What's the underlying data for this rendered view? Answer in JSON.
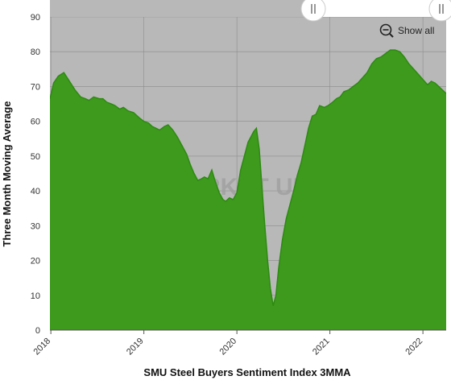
{
  "chart_data": {
    "type": "area",
    "title": "",
    "xlabel": "SMU Steel Buyers Sentiment Index 3MMA",
    "ylabel": "Three Month Moving Average",
    "ylim": [
      0,
      90
    ],
    "yticks": [
      0,
      10,
      20,
      30,
      40,
      50,
      60,
      70,
      80,
      90
    ],
    "xticks": [
      {
        "label": "2018",
        "x": 2018.0
      },
      {
        "label": "2019",
        "x": 2019.0
      },
      {
        "label": "2020",
        "x": 2020.0
      },
      {
        "label": "2021",
        "x": 2021.0
      },
      {
        "label": "2022",
        "x": 2022.0
      }
    ],
    "xlim": [
      2017.99,
      2022.25
    ],
    "grid": true,
    "fill_color": "#3d9a1c",
    "line_color": "#2e8a12",
    "plot_background": "#b8b8b8",
    "watermark": "STEEL MARKET UPDATE",
    "series": [
      {
        "x": [
          2017.99,
          2018.03,
          2018.08,
          2018.14,
          2018.2,
          2018.26,
          2018.32,
          2018.37,
          2018.41,
          2018.46,
          2018.52,
          2018.56,
          2018.6,
          2018.65,
          2018.69,
          2018.74,
          2018.78,
          2018.83,
          2018.89,
          2018.95,
          2019.0,
          2019.05,
          2019.09,
          2019.13,
          2019.17,
          2019.22,
          2019.26,
          2019.31,
          2019.36,
          2019.41,
          2019.46,
          2019.5,
          2019.54,
          2019.58,
          2019.62,
          2019.65,
          2019.69,
          2019.73,
          2019.77,
          2019.81,
          2019.85,
          2019.88,
          2019.92,
          2019.96,
          2020.0,
          2020.04,
          2020.08,
          2020.12,
          2020.15,
          2020.18,
          2020.21,
          2020.24,
          2020.27,
          2020.3,
          2020.33,
          2020.36,
          2020.39,
          2020.42,
          2020.45,
          2020.49,
          2020.53,
          2020.57,
          2020.61,
          2020.65,
          2020.69,
          2020.73,
          2020.77,
          2020.81,
          2020.85,
          2020.89,
          2020.94,
          2020.98,
          2021.03,
          2021.07,
          2021.11,
          2021.15,
          2021.2,
          2021.25,
          2021.3,
          2021.35,
          2021.4,
          2021.45,
          2021.5,
          2021.55,
          2021.6,
          2021.65,
          2021.7,
          2021.75,
          2021.8,
          2021.85,
          2021.9,
          2021.95,
          2022.0,
          2022.05,
          2022.09,
          2022.13,
          2022.17,
          2022.21,
          2022.25
        ],
        "y": [
          66.5,
          71,
          73,
          74,
          71.5,
          69,
          67,
          66.5,
          66,
          67,
          66.5,
          66.5,
          65.5,
          65,
          64.5,
          63.5,
          64,
          63,
          62.5,
          61,
          60,
          59.5,
          58.5,
          58,
          57.5,
          58.5,
          59,
          57.5,
          55.5,
          53,
          50.5,
          47.5,
          45,
          43,
          43.5,
          44,
          43.5,
          46,
          42.5,
          39.5,
          37.5,
          37,
          38,
          37.5,
          39.5,
          46,
          50,
          54,
          55.5,
          57,
          58,
          52,
          41,
          30,
          20,
          12,
          7,
          10,
          18,
          26,
          32,
          36,
          40,
          44.5,
          48,
          53,
          58,
          61.5,
          62,
          64.5,
          64,
          64.5,
          65.5,
          66.5,
          67,
          68.5,
          69,
          70,
          71,
          72.5,
          74,
          76.5,
          78,
          78.5,
          79.5,
          80.5,
          80.5,
          80,
          78.5,
          76.5,
          75,
          73.5,
          72,
          70.5,
          71.5,
          71,
          70,
          69,
          68
        ]
      }
    ],
    "legend": {
      "button_label": "Show all",
      "icon": "zoom-out-icon"
    },
    "range_slider": {
      "handles": [
        "||",
        "||"
      ],
      "visible_fraction": [
        0.0,
        0.62
      ]
    }
  }
}
